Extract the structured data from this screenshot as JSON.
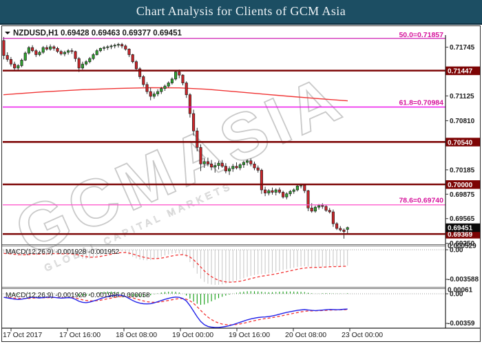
{
  "title_bar": {
    "text": "Chart Analysis for Clients of GCM Asia",
    "bg_color": "#1c4e63"
  },
  "quote_header": {
    "symbol": "NZDUSD,H1",
    "open": "0.69428",
    "high": "0.69463",
    "low": "0.69377",
    "close": "0.69451"
  },
  "watermark": {
    "main": "GCMASIA",
    "sub": "GLOBAL CAPITAL MARKETS"
  },
  "price_axis": {
    "ticks": [
      {
        "label": "0.71745",
        "price": 0.71745
      },
      {
        "label": "0.71125",
        "price": 0.71125
      },
      {
        "label": "0.70810",
        "price": 0.7081
      },
      {
        "label": "0.70185",
        "price": 0.70185
      },
      {
        "label": "0.69875",
        "price": 0.69875
      },
      {
        "label": "0.69565",
        "price": 0.69565
      },
      {
        "label": "0.69250",
        "price": 0.6925
      }
    ],
    "sr_tags": [
      {
        "label": "0.71447",
        "price": 0.71447
      },
      {
        "label": "0.70540",
        "price": 0.7054
      },
      {
        "label": "0.70000",
        "price": 0.7
      },
      {
        "label": "0.69369",
        "price": 0.69369
      }
    ],
    "current_tag": {
      "label": "0.69451",
      "price": 0.69451
    }
  },
  "fib_levels": [
    {
      "ratio": "50.0",
      "label": "50.0=0.71857",
      "price": 0.71857,
      "line_color": "#cf22b5"
    },
    {
      "ratio": "61.8",
      "label": "61.8=0.70984",
      "price": 0.70984,
      "line_color": "#ea00ea"
    },
    {
      "ratio": "78.6",
      "label": "78.6=0.69740",
      "price": 0.6974,
      "line_color": "#ff4cc9"
    }
  ],
  "time_axis": {
    "labels": [
      "17 Oct 2017",
      "17 Oct 16:00",
      "18 Oct 08:00",
      "19 Oct 00:00",
      "19 Oct 16:00",
      "20 Oct 08:00",
      "23 Oct 00:00"
    ]
  },
  "indicator_panels": [
    {
      "header": "MACD(12,26,9) -0.001928 -0.001952",
      "axis_labels": {
        "top": "0.000529",
        "zero": "0.00",
        "bottom": "-0.003588"
      }
    },
    {
      "header": "MACD(12,26,9) -0.001928 -0.001986 0.000058",
      "axis_labels": {
        "top": "0.00061",
        "zero": "0.00",
        "bottom": "-0.00359"
      }
    }
  ],
  "colors": {
    "bull": "#2fa32f",
    "bear": "#cc2429",
    "wick": "#2b2b2b",
    "sr_line": "#7d0606",
    "sr_tag_bg": "#7d0404",
    "current_tag_bg": "#0a0a0a",
    "ma_line": "#f03434",
    "macd_bar": "#c9c9c9",
    "osma_bar": "#0d9b0d",
    "macd_line": "#2020e8",
    "signal_line": "#f23030",
    "fib_label": "#d6149c",
    "axis_text": "#1a1a1a",
    "watermark": "#c4c4c4"
  },
  "chart_data": {
    "type": "candlestick",
    "symbol": "NZDUSD",
    "timeframe": "H1",
    "title": "NZDUSD H1 candlestick chart with MA, Fibonacci retracement, support/resistance lines and two MACD sub-windows",
    "ylim": [
      0.69226,
      0.7189
    ],
    "grid": false,
    "legend_position": "none",
    "candles": [
      [
        0.7183,
        0.71875,
        0.7159,
        0.7164
      ],
      [
        0.7164,
        0.7168,
        0.7156,
        0.7159
      ],
      [
        0.7159,
        0.7162,
        0.715,
        0.7153
      ],
      [
        0.7153,
        0.7156,
        0.7145,
        0.7148
      ],
      [
        0.7148,
        0.7153,
        0.7144,
        0.7151
      ],
      [
        0.7151,
        0.716,
        0.7149,
        0.7158
      ],
      [
        0.7158,
        0.7169,
        0.7157,
        0.7167
      ],
      [
        0.7167,
        0.7176,
        0.7165,
        0.7174
      ],
      [
        0.7174,
        0.7177,
        0.7168,
        0.717
      ],
      [
        0.717,
        0.7172,
        0.7162,
        0.7165
      ],
      [
        0.7165,
        0.717,
        0.7163,
        0.7168
      ],
      [
        0.7168,
        0.7176,
        0.7166,
        0.7174
      ],
      [
        0.7174,
        0.7177,
        0.717,
        0.7172
      ],
      [
        0.7172,
        0.7178,
        0.717,
        0.7175
      ],
      [
        0.7175,
        0.7177,
        0.717,
        0.7173
      ],
      [
        0.7173,
        0.7175,
        0.7167,
        0.7169
      ],
      [
        0.7169,
        0.7171,
        0.7164,
        0.7166
      ],
      [
        0.7166,
        0.717,
        0.7163,
        0.7168
      ],
      [
        0.7168,
        0.7172,
        0.7165,
        0.717
      ],
      [
        0.717,
        0.7173,
        0.7166,
        0.7169
      ],
      [
        0.7169,
        0.717,
        0.7156,
        0.716
      ],
      [
        0.716,
        0.7162,
        0.7143,
        0.7148
      ],
      [
        0.7148,
        0.7156,
        0.7146,
        0.7153
      ],
      [
        0.7153,
        0.7158,
        0.7151,
        0.7156
      ],
      [
        0.7156,
        0.7162,
        0.7154,
        0.716
      ],
      [
        0.716,
        0.7167,
        0.7158,
        0.7165
      ],
      [
        0.7165,
        0.7172,
        0.7164,
        0.717
      ],
      [
        0.717,
        0.7174,
        0.7168,
        0.7173
      ],
      [
        0.7173,
        0.7176,
        0.717,
        0.7174
      ],
      [
        0.7174,
        0.7177,
        0.7171,
        0.7175
      ],
      [
        0.7175,
        0.7178,
        0.7172,
        0.7176
      ],
      [
        0.7176,
        0.7179,
        0.7173,
        0.7177
      ],
      [
        0.7177,
        0.718,
        0.7174,
        0.7178
      ],
      [
        0.7178,
        0.718,
        0.7173,
        0.7176
      ],
      [
        0.7176,
        0.7178,
        0.717,
        0.7172
      ],
      [
        0.7172,
        0.7173,
        0.7162,
        0.7165
      ],
      [
        0.7165,
        0.7166,
        0.7154,
        0.7156
      ],
      [
        0.7156,
        0.7158,
        0.7144,
        0.7147
      ],
      [
        0.7147,
        0.7149,
        0.7134,
        0.7137
      ],
      [
        0.7137,
        0.7139,
        0.7124,
        0.7127
      ],
      [
        0.7127,
        0.713,
        0.7115,
        0.7118
      ],
      [
        0.7118,
        0.7123,
        0.7107,
        0.7112
      ],
      [
        0.7112,
        0.7118,
        0.7109,
        0.7115
      ],
      [
        0.7115,
        0.7121,
        0.7112,
        0.7118
      ],
      [
        0.7118,
        0.7124,
        0.7115,
        0.7122
      ],
      [
        0.7122,
        0.7127,
        0.7119,
        0.7125
      ],
      [
        0.7125,
        0.7131,
        0.7123,
        0.7129
      ],
      [
        0.7129,
        0.7136,
        0.7127,
        0.7134
      ],
      [
        0.7134,
        0.7145,
        0.7132,
        0.7143
      ],
      [
        0.7143,
        0.7146,
        0.7135,
        0.7139
      ],
      [
        0.7139,
        0.714,
        0.7126,
        0.7129
      ],
      [
        0.7129,
        0.7131,
        0.711,
        0.7114
      ],
      [
        0.7114,
        0.7116,
        0.7085,
        0.709
      ],
      [
        0.709,
        0.7095,
        0.7062,
        0.7068
      ],
      [
        0.7068,
        0.7072,
        0.7042,
        0.7047
      ],
      [
        0.7047,
        0.7051,
        0.7017,
        0.7026
      ],
      [
        0.7026,
        0.7033,
        0.7021,
        0.7029
      ],
      [
        0.7029,
        0.7034,
        0.7023,
        0.7026
      ],
      [
        0.7026,
        0.7031,
        0.7018,
        0.7022
      ],
      [
        0.7022,
        0.7028,
        0.7015,
        0.7024
      ],
      [
        0.7024,
        0.703,
        0.7019,
        0.7027
      ],
      [
        0.7027,
        0.7031,
        0.7021,
        0.7023
      ],
      [
        0.7023,
        0.7027,
        0.7014,
        0.7017
      ],
      [
        0.7017,
        0.7023,
        0.7012,
        0.702
      ],
      [
        0.702,
        0.7026,
        0.7016,
        0.7023
      ],
      [
        0.7023,
        0.7028,
        0.7019,
        0.7021
      ],
      [
        0.7021,
        0.7027,
        0.7018,
        0.7025
      ],
      [
        0.7025,
        0.703,
        0.7021,
        0.7028
      ],
      [
        0.7028,
        0.7032,
        0.7024,
        0.703
      ],
      [
        0.703,
        0.7033,
        0.7023,
        0.7026
      ],
      [
        0.7026,
        0.7029,
        0.7018,
        0.7021
      ],
      [
        0.7021,
        0.7024,
        0.7015,
        0.7018
      ],
      [
        0.7018,
        0.702,
        0.6988,
        0.6993
      ],
      [
        0.6993,
        0.6997,
        0.6985,
        0.6989
      ],
      [
        0.6989,
        0.6994,
        0.6986,
        0.6992
      ],
      [
        0.6992,
        0.6996,
        0.6987,
        0.699
      ],
      [
        0.699,
        0.6995,
        0.6986,
        0.6993
      ],
      [
        0.6993,
        0.6996,
        0.6988,
        0.699
      ],
      [
        0.699,
        0.6992,
        0.6982,
        0.6984
      ],
      [
        0.6984,
        0.699,
        0.6981,
        0.6988
      ],
      [
        0.6988,
        0.6993,
        0.6985,
        0.6991
      ],
      [
        0.6991,
        0.6995,
        0.6988,
        0.6993
      ],
      [
        0.6993,
        0.7,
        0.6991,
        0.6998
      ],
      [
        0.6998,
        0.7001,
        0.6995,
        0.6999
      ],
      [
        0.6999,
        0.7,
        0.6989,
        0.6992
      ],
      [
        0.6992,
        0.6993,
        0.6966,
        0.697
      ],
      [
        0.697,
        0.6976,
        0.6964,
        0.6966
      ],
      [
        0.6966,
        0.6973,
        0.6964,
        0.6971
      ],
      [
        0.6971,
        0.6975,
        0.6968,
        0.6973
      ],
      [
        0.6973,
        0.6976,
        0.6969,
        0.6972
      ],
      [
        0.6972,
        0.6974,
        0.6965,
        0.6967
      ],
      [
        0.6967,
        0.697,
        0.6963,
        0.6965
      ],
      [
        0.6965,
        0.6968,
        0.6946,
        0.695
      ],
      [
        0.695,
        0.6952,
        0.6942,
        0.6944
      ],
      [
        0.6944,
        0.6947,
        0.694,
        0.6942
      ],
      [
        0.6942,
        0.6944,
        0.6931,
        0.694
      ],
      [
        0.69428,
        0.69463,
        0.69377,
        0.69451
      ]
    ],
    "moving_average": [
      [
        3,
        0.7114
      ],
      [
        58,
        0.71175
      ],
      [
        118,
        0.71205
      ],
      [
        168,
        0.7122
      ],
      [
        218,
        0.7123
      ],
      [
        258,
        0.71228
      ],
      [
        298,
        0.7121
      ],
      [
        338,
        0.7118
      ],
      [
        378,
        0.7115
      ],
      [
        418,
        0.7112
      ],
      [
        458,
        0.71092
      ],
      [
        503,
        0.71062
      ]
    ],
    "sr_prices": [
      0.71447,
      0.7054,
      0.7,
      0.69369
    ],
    "fib_prices": [
      0.71857,
      0.70984,
      0.6974
    ],
    "macd": [
      -0.00045,
      -0.00052,
      -0.0006,
      -0.00068,
      -0.00072,
      -0.00068,
      -0.0006,
      -0.0005,
      -0.00044,
      -0.00048,
      -0.00052,
      -0.00048,
      -0.00044,
      -0.00042,
      -0.00045,
      -0.0005,
      -0.00055,
      -0.00052,
      -0.00048,
      -0.00052,
      -0.0007,
      -0.00095,
      -0.00108,
      -0.00112,
      -0.00105,
      -0.00092,
      -0.00078,
      -0.00062,
      -0.00048,
      -0.00036,
      -0.00027,
      -0.0002,
      -0.00016,
      -0.0002,
      -0.00035,
      -0.0006,
      -0.00085,
      -0.00105,
      -0.00118,
      -0.00126,
      -0.00128,
      -0.00125,
      -0.00115,
      -0.001,
      -0.00085,
      -0.0007,
      -0.00058,
      -0.00048,
      -0.00042,
      -0.00045,
      -0.0006,
      -0.0009,
      -0.0015,
      -0.0022,
      -0.0029,
      -0.0035,
      -0.0039,
      -0.00412,
      -0.00422,
      -0.00426,
      -0.00425,
      -0.0042,
      -0.00413,
      -0.00403,
      -0.0039,
      -0.00375,
      -0.0036,
      -0.00345,
      -0.0033,
      -0.00318,
      -0.00308,
      -0.003,
      -0.00295,
      -0.00293,
      -0.00288,
      -0.0028,
      -0.0027,
      -0.00258,
      -0.00246,
      -0.00236,
      -0.00227,
      -0.00218,
      -0.0021,
      -0.00204,
      -0.002,
      -0.00205,
      -0.0021,
      -0.00212,
      -0.0021,
      -0.00206,
      -0.00202,
      -0.00198,
      -0.002,
      -0.00202,
      -0.002,
      -0.00196,
      -0.001928
    ],
    "macd_current": "-0.001928",
    "signal_current": "-0.001952",
    "osma_current": "0.000058"
  }
}
